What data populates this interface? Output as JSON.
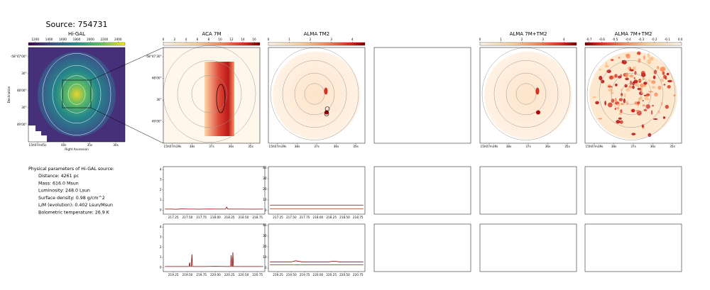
{
  "title": "Source: 754731",
  "properties": {
    "heading": "Physical parameters of Hi-GAL source:",
    "lines": [
      "Distance: 4261 pc",
      "Mass: 616.0 Msun",
      "Luminosity: 248.0 Lsun",
      "Surface density: 0.98 g/cm^2",
      "L/M (evolution): 0.402 Lsun/Msun",
      "Bolometric temperature: 26.9 K"
    ]
  },
  "chart_data": [
    {
      "type": "image",
      "title": "Hi-GAL",
      "cmap": "viridis",
      "clim": [
        1100,
        2500
      ],
      "cticks": [
        1200,
        1400,
        1600,
        1800,
        2000,
        2200,
        2400
      ],
      "xlabel": "Right Ascension",
      "ylabel": "Declination",
      "xticklabels": [
        "15h07m45s",
        "40s",
        "35s",
        "30s"
      ],
      "yticklabels": [
        "-58°47'00\"",
        "30\"",
        "48'00\"",
        "30\"",
        "49'00\""
      ]
    },
    {
      "type": "image",
      "title": "ACA 7M",
      "cmap": "OrRd",
      "clim": [
        0,
        17
      ],
      "cticks": [
        0,
        2,
        4,
        6,
        8,
        10,
        12,
        14,
        16
      ],
      "xticklabels": [
        "15h07m39s",
        "38s",
        "37s",
        "36s",
        "35s"
      ],
      "yticklabels": [
        "-58°47'30\"",
        "48'00\"",
        "30\"",
        "49'00\""
      ]
    },
    {
      "type": "image",
      "title": "ALMA TM2",
      "cmap": "OrRd",
      "clim": [
        0,
        4.6
      ],
      "cticks": [
        0,
        1,
        2,
        3,
        4
      ],
      "xticklabels": [
        "15h07m39s",
        "38s",
        "37s",
        "36s",
        "35s"
      ]
    },
    {
      "type": "empty"
    },
    {
      "type": "image",
      "title": "ALMA 7M+TM2",
      "cmap": "OrRd",
      "clim": [
        0,
        4.6
      ],
      "cticks": [
        0,
        1,
        2,
        3,
        4
      ],
      "xticklabels": [
        "15h07m39s",
        "38s",
        "37s",
        "36s",
        "35s"
      ]
    },
    {
      "type": "image",
      "title": "ALMA 7M+TM2",
      "cmap": "OrRd_r",
      "clim": [
        -0.73,
        0.01
      ],
      "cticks": [
        -0.7,
        -0.6,
        -0.5,
        -0.4,
        -0.3,
        -0.2,
        -0.1,
        {
          "value": 0,
          "label": "0.0"
        }
      ],
      "xticklabels": [
        "15h07m39s",
        "38s",
        "37s",
        "36s",
        "35s"
      ]
    },
    {
      "type": "line",
      "xlim": [
        217.07,
        218.88
      ],
      "ylim": [
        -0.4,
        4.3
      ],
      "yticks": [
        0,
        1,
        2,
        3,
        4
      ],
      "xticks": [
        217.25,
        {
          "value": 217.5,
          "label": "217.50"
        },
        217.75,
        {
          "value": 218,
          "label": "218.00"
        },
        218.25,
        {
          "value": 218.5,
          "label": "218.50"
        },
        218.75
      ],
      "x": [
        217.1,
        217.2,
        217.3,
        217.4,
        217.5,
        217.6,
        217.7,
        217.8,
        217.9,
        218.0,
        218.1,
        218.18,
        218.2,
        218.22,
        218.3,
        218.5,
        218.7,
        218.85
      ],
      "series": [
        {
          "color": "#8b0000",
          "values": [
            0.1,
            0.1,
            0.08,
            0.12,
            0.1,
            0.1,
            0.09,
            0.1,
            0.11,
            0.1,
            0.1,
            0.1,
            0.3,
            0.1,
            0.1,
            0.1,
            0.09,
            0.1
          ]
        }
      ]
    },
    {
      "type": "line",
      "xlim": [
        217.07,
        218.88
      ],
      "ylim": [
        -3.3,
        41.3
      ],
      "yticks": [
        0,
        10,
        20,
        30,
        40
      ],
      "xticks": [
        217.25,
        {
          "value": 217.5,
          "label": "217.50"
        },
        217.75,
        {
          "value": 218,
          "label": "218.00"
        },
        218.25,
        {
          "value": 218.5,
          "label": "218.50"
        },
        218.75
      ],
      "x": [
        217.1,
        217.5,
        218.0,
        218.5,
        218.85
      ],
      "series": [
        {
          "color": "#8b0000",
          "values": [
            5.2,
            5.2,
            5.2,
            5.2,
            5.2
          ]
        },
        {
          "color": "#c0392b",
          "values": [
            1.8,
            1.8,
            1.8,
            1.8,
            1.8
          ]
        }
      ]
    },
    {
      "type": "empty"
    },
    {
      "type": "empty"
    },
    {
      "type": "empty"
    },
    {
      "type": "line",
      "xlim": [
        219.07,
        220.88
      ],
      "ylim": [
        -0.4,
        4.3
      ],
      "yticks": [
        0,
        1,
        2,
        3,
        4
      ],
      "xticks": [
        219.25,
        {
          "value": 219.5,
          "label": "219.50"
        },
        219.75,
        {
          "value": 220,
          "label": "220.00"
        },
        220.25,
        {
          "value": 220.5,
          "label": "220.50"
        },
        220.75
      ],
      "x": [
        219.1,
        219.3,
        219.5,
        219.53,
        219.54,
        219.55,
        219.57,
        219.58,
        219.59,
        219.8,
        220.0,
        220.2,
        220.27,
        220.28,
        220.29,
        220.3,
        220.31,
        220.32,
        220.5,
        220.7,
        220.85
      ],
      "series": [
        {
          "color": "#8b0000",
          "values": [
            0.1,
            0.1,
            0.1,
            0.1,
            0.5,
            0.1,
            0.1,
            1.3,
            0.1,
            0.1,
            0.12,
            0.1,
            0.1,
            1.2,
            0.1,
            0.1,
            1.5,
            0.1,
            0.1,
            0.1,
            0.1
          ]
        }
      ]
    },
    {
      "type": "line",
      "xlim": [
        219.07,
        220.88
      ],
      "ylim": [
        -3.3,
        41.3
      ],
      "yticks": [
        0,
        10,
        20,
        30,
        40
      ],
      "xticks": [
        219.25,
        {
          "value": 219.5,
          "label": "219.50"
        },
        219.75,
        {
          "value": 220,
          "label": "220.00"
        },
        220.25,
        {
          "value": 220.5,
          "label": "220.50"
        },
        220.75
      ],
      "x": [
        219.1,
        219.5,
        219.58,
        219.7,
        220.2,
        220.3,
        220.4,
        220.85
      ],
      "series": [
        {
          "color": "#8b0000",
          "values": [
            5.8,
            5.8,
            6.8,
            5.8,
            5.8,
            6.5,
            5.8,
            5.8
          ]
        },
        {
          "color": "#c0392b",
          "values": [
            3.0,
            3.0,
            3.0,
            3.0,
            3.0,
            3.0,
            3.0,
            3.0
          ]
        }
      ]
    },
    {
      "type": "empty"
    },
    {
      "type": "empty"
    },
    {
      "type": "empty"
    }
  ]
}
